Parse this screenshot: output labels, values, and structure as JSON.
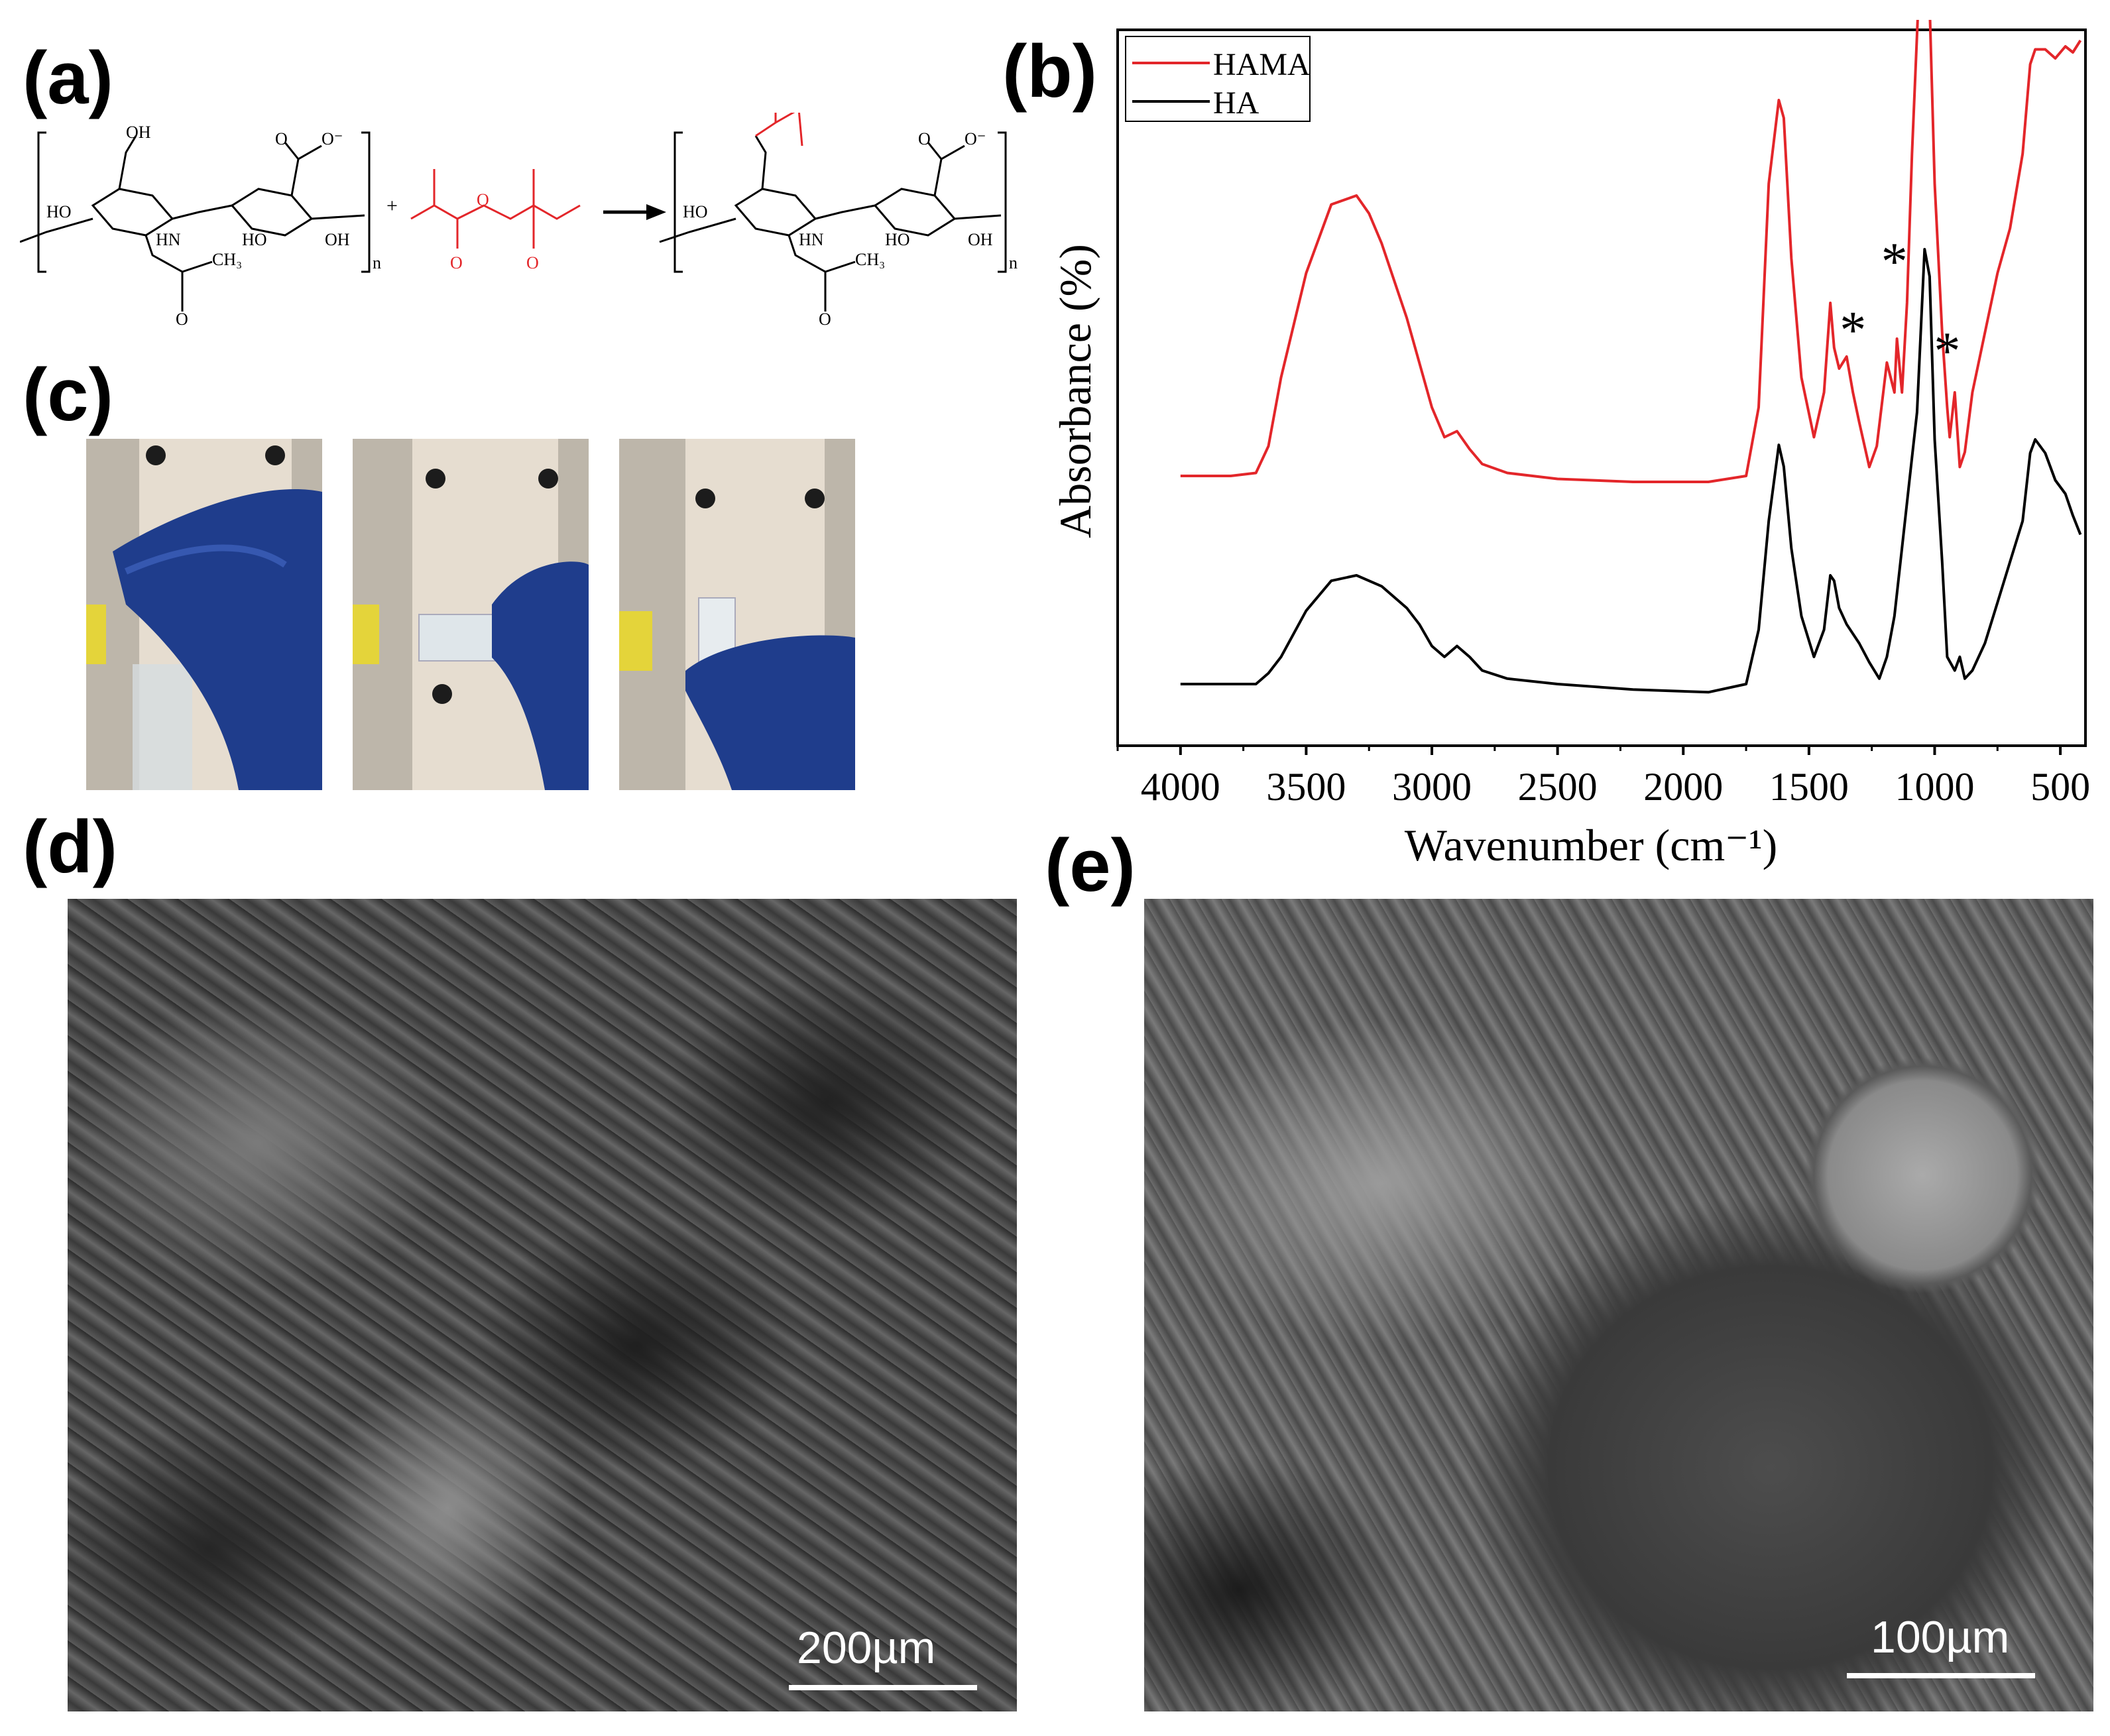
{
  "panels": {
    "a": "(a)",
    "b": "(b)",
    "c": "(c)",
    "d": "(d)",
    "e": "(e)"
  },
  "scheme": {
    "n": "n",
    "plus": "+",
    "o_minus": "O⁻",
    "oh": "OH",
    "ho": "HO",
    "hn": "HN",
    "o": "O",
    "ch3": "CH₃",
    "colors": {
      "ha": "#000000",
      "methacrylic": "#e3262a"
    }
  },
  "chart_data": {
    "type": "line",
    "xlabel": "Wavenumber (cm⁻¹)",
    "ylabel": "Absorbance (%)",
    "xlim": [
      4250,
      400
    ],
    "x_ticks": [
      4000,
      3500,
      3000,
      2500,
      2000,
      1500,
      1000,
      500
    ],
    "y_ticks_shown": false,
    "legend_position": "top-left",
    "series": [
      {
        "name": "HAMA",
        "color": "#e3262a",
        "x": [
          4000,
          3800,
          3700,
          3650,
          3600,
          3500,
          3400,
          3300,
          3250,
          3200,
          3100,
          3000,
          2950,
          2900,
          2850,
          2800,
          2700,
          2500,
          2200,
          1900,
          1750,
          1700,
          1660,
          1620,
          1600,
          1570,
          1530,
          1480,
          1440,
          1415,
          1400,
          1380,
          1350,
          1325,
          1300,
          1260,
          1230,
          1190,
          1160,
          1150,
          1130,
          1110,
          1090,
          1060,
          1040,
          1020,
          1000,
          970,
          950,
          940,
          920,
          900,
          880,
          850,
          800,
          750,
          700,
          650,
          620,
          600,
          560,
          520,
          480,
          450,
          420
        ],
        "y": [
          0.02,
          0.02,
          0.03,
          0.12,
          0.35,
          0.7,
          0.93,
          0.96,
          0.9,
          0.8,
          0.55,
          0.25,
          0.15,
          0.17,
          0.11,
          0.06,
          0.03,
          0.01,
          0.0,
          0.0,
          0.02,
          0.25,
          1.0,
          1.28,
          1.22,
          0.75,
          0.35,
          0.15,
          0.3,
          0.6,
          0.45,
          0.38,
          0.42,
          0.3,
          0.2,
          0.05,
          0.12,
          0.4,
          0.3,
          0.48,
          0.3,
          0.6,
          1.1,
          1.7,
          2.0,
          1.6,
          1.0,
          0.5,
          0.25,
          0.15,
          0.3,
          0.05,
          0.1,
          0.3,
          0.5,
          0.7,
          0.85,
          1.1,
          1.4,
          1.45,
          1.45,
          1.42,
          1.46,
          1.44,
          1.48
        ]
      },
      {
        "name": "HA",
        "color": "#000000",
        "x": [
          4000,
          3800,
          3700,
          3650,
          3600,
          3500,
          3400,
          3300,
          3200,
          3100,
          3050,
          3000,
          2950,
          2900,
          2850,
          2800,
          2700,
          2500,
          2200,
          1900,
          1750,
          1700,
          1660,
          1620,
          1600,
          1570,
          1530,
          1480,
          1440,
          1415,
          1400,
          1380,
          1350,
          1300,
          1260,
          1220,
          1190,
          1160,
          1130,
          1100,
          1070,
          1040,
          1020,
          1000,
          970,
          950,
          920,
          900,
          880,
          850,
          800,
          750,
          700,
          650,
          620,
          600,
          560,
          520,
          480,
          450,
          420
        ],
        "y": [
          0.0,
          0.0,
          0.0,
          0.04,
          0.1,
          0.27,
          0.38,
          0.4,
          0.36,
          0.28,
          0.22,
          0.14,
          0.1,
          0.14,
          0.1,
          0.05,
          0.02,
          0.0,
          -0.02,
          -0.03,
          0.0,
          0.2,
          0.6,
          0.88,
          0.8,
          0.5,
          0.25,
          0.1,
          0.2,
          0.4,
          0.38,
          0.28,
          0.22,
          0.15,
          0.08,
          0.02,
          0.1,
          0.25,
          0.5,
          0.75,
          1.0,
          1.6,
          1.5,
          0.9,
          0.45,
          0.1,
          0.05,
          0.1,
          0.02,
          0.05,
          0.15,
          0.3,
          0.45,
          0.6,
          0.85,
          0.9,
          0.85,
          0.75,
          0.7,
          0.62,
          0.55
        ]
      }
    ],
    "annotations": [
      "*",
      "*",
      "*"
    ]
  },
  "sem": {
    "d_scale": "200µm",
    "e_scale": "100µm"
  }
}
